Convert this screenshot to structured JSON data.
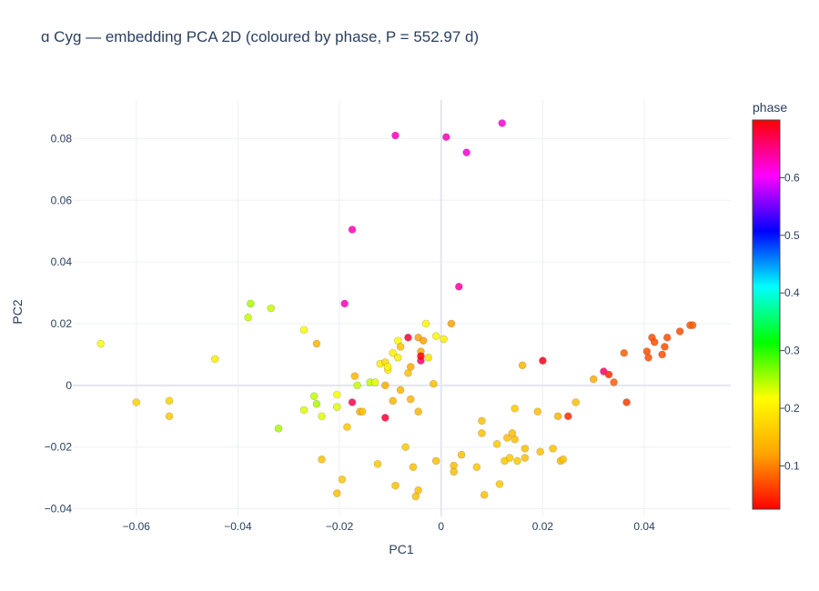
{
  "chart_data": {
    "type": "scatter",
    "title": "ɑ Cyg — embedding PCA 2D (coloured by phase, P = 552.97 d)",
    "xlabel": "PC1",
    "ylabel": "PC2",
    "xlim": [
      -0.0725,
      0.057
    ],
    "ylim": [
      -0.0425,
      0.0925
    ],
    "xticks": [
      -0.06,
      -0.04,
      -0.02,
      0,
      0.02,
      0.04
    ],
    "xtick_labels": [
      "−0.06",
      "−0.04",
      "−0.02",
      "0",
      "0.02",
      "0.04"
    ],
    "yticks": [
      -0.04,
      -0.02,
      0,
      0.02,
      0.04,
      0.06,
      0.08
    ],
    "ytick_labels": [
      "−0.04",
      "−0.02",
      "0",
      "0.02",
      "0.04",
      "0.06",
      "0.08"
    ],
    "grid": true,
    "colorbar": {
      "title": "phase",
      "range": [
        0.025,
        0.7
      ],
      "ticks": [
        0.1,
        0.2,
        0.3,
        0.4,
        0.5,
        0.6
      ],
      "tick_labels": [
        "0.1",
        "0.2",
        "0.3",
        "0.4",
        "0.5",
        "0.6"
      ],
      "colorscale": [
        "#ff0000",
        "#ffa500",
        "#ffff00",
        "#00ff00",
        "#00ffff",
        "#0000ff",
        "#ff00ff",
        "#ff0000"
      ]
    },
    "points": [
      {
        "x": -0.067,
        "y": 0.0135,
        "phase": 0.22
      },
      {
        "x": -0.06,
        "y": -0.0055,
        "phase": 0.17
      },
      {
        "x": -0.0535,
        "y": -0.005,
        "phase": 0.17
      },
      {
        "x": -0.0535,
        "y": -0.01,
        "phase": 0.16
      },
      {
        "x": -0.0445,
        "y": 0.0085,
        "phase": 0.2
      },
      {
        "x": -0.0375,
        "y": 0.0265,
        "phase": 0.25
      },
      {
        "x": -0.038,
        "y": 0.022,
        "phase": 0.24
      },
      {
        "x": -0.0335,
        "y": 0.025,
        "phase": 0.24
      },
      {
        "x": -0.032,
        "y": -0.014,
        "phase": 0.25
      },
      {
        "x": -0.027,
        "y": 0.018,
        "phase": 0.22
      },
      {
        "x": -0.027,
        "y": -0.008,
        "phase": 0.23
      },
      {
        "x": -0.0245,
        "y": 0.0135,
        "phase": 0.14
      },
      {
        "x": -0.025,
        "y": -0.0035,
        "phase": 0.24
      },
      {
        "x": -0.0245,
        "y": -0.006,
        "phase": 0.25
      },
      {
        "x": -0.0235,
        "y": -0.01,
        "phase": 0.23
      },
      {
        "x": -0.0235,
        "y": -0.024,
        "phase": 0.15
      },
      {
        "x": -0.0205,
        "y": -0.003,
        "phase": 0.22
      },
      {
        "x": -0.0205,
        "y": -0.007,
        "phase": 0.23
      },
      {
        "x": -0.0205,
        "y": -0.035,
        "phase": 0.15
      },
      {
        "x": -0.0195,
        "y": -0.0305,
        "phase": 0.16
      },
      {
        "x": -0.019,
        "y": 0.0265,
        "phase": 0.63
      },
      {
        "x": -0.0185,
        "y": -0.0135,
        "phase": 0.16
      },
      {
        "x": -0.0175,
        "y": 0.0505,
        "phase": 0.63
      },
      {
        "x": -0.0175,
        "y": -0.0055,
        "phase": 0.67
      },
      {
        "x": -0.017,
        "y": 0.003,
        "phase": 0.14
      },
      {
        "x": -0.0165,
        "y": 0.0,
        "phase": 0.24
      },
      {
        "x": -0.016,
        "y": -0.0085,
        "phase": 0.14
      },
      {
        "x": -0.0155,
        "y": -0.0085,
        "phase": 0.15
      },
      {
        "x": -0.014,
        "y": 0.001,
        "phase": 0.24
      },
      {
        "x": -0.013,
        "y": 0.001,
        "phase": 0.23
      },
      {
        "x": -0.0125,
        "y": -0.0255,
        "phase": 0.16
      },
      {
        "x": -0.012,
        "y": 0.007,
        "phase": 0.2
      },
      {
        "x": -0.011,
        "y": -0.0105,
        "phase": 0.68
      },
      {
        "x": -0.011,
        "y": 0.0,
        "phase": 0.13
      },
      {
        "x": -0.011,
        "y": 0.0075,
        "phase": 0.18
      },
      {
        "x": -0.0105,
        "y": 0.005,
        "phase": 0.2
      },
      {
        "x": -0.0105,
        "y": 0.006,
        "phase": 0.21
      },
      {
        "x": -0.0095,
        "y": 0.0105,
        "phase": 0.2
      },
      {
        "x": -0.0095,
        "y": -0.005,
        "phase": 0.14
      },
      {
        "x": -0.009,
        "y": 0.081,
        "phase": 0.63
      },
      {
        "x": -0.009,
        "y": -0.0325,
        "phase": 0.15
      },
      {
        "x": -0.0085,
        "y": 0.0145,
        "phase": 0.21
      },
      {
        "x": -0.0085,
        "y": 0.009,
        "phase": 0.2
      },
      {
        "x": -0.008,
        "y": 0.0125,
        "phase": 0.15
      },
      {
        "x": -0.008,
        "y": -0.0015,
        "phase": 0.14
      },
      {
        "x": -0.007,
        "y": -0.02,
        "phase": 0.16
      },
      {
        "x": -0.0065,
        "y": 0.0155,
        "phase": 0.68
      },
      {
        "x": -0.0065,
        "y": 0.004,
        "phase": 0.15
      },
      {
        "x": -0.006,
        "y": -0.0045,
        "phase": 0.14
      },
      {
        "x": -0.006,
        "y": 0.006,
        "phase": 0.13
      },
      {
        "x": -0.0055,
        "y": -0.0265,
        "phase": 0.15
      },
      {
        "x": -0.005,
        "y": -0.036,
        "phase": 0.15
      },
      {
        "x": -0.0045,
        "y": 0.0155,
        "phase": 0.12
      },
      {
        "x": -0.0045,
        "y": -0.034,
        "phase": 0.15
      },
      {
        "x": -0.0045,
        "y": -0.0085,
        "phase": 0.14
      },
      {
        "x": -0.004,
        "y": 0.011,
        "phase": 0.13
      },
      {
        "x": -0.004,
        "y": 0.008,
        "phase": 0.66
      },
      {
        "x": -0.004,
        "y": 0.0095,
        "phase": 0.7
      },
      {
        "x": -0.0035,
        "y": 0.0145,
        "phase": 0.12
      },
      {
        "x": -0.003,
        "y": 0.02,
        "phase": 0.21
      },
      {
        "x": -0.0025,
        "y": 0.009,
        "phase": 0.19
      },
      {
        "x": -0.0015,
        "y": 0.0005,
        "phase": 0.15
      },
      {
        "x": -0.001,
        "y": -0.0245,
        "phase": 0.15
      },
      {
        "x": -0.001,
        "y": 0.016,
        "phase": 0.21
      },
      {
        "x": 0.0005,
        "y": 0.015,
        "phase": 0.2
      },
      {
        "x": 0.001,
        "y": 0.0805,
        "phase": 0.63
      },
      {
        "x": 0.002,
        "y": 0.02,
        "phase": 0.12
      },
      {
        "x": 0.0025,
        "y": -0.026,
        "phase": 0.15
      },
      {
        "x": 0.0025,
        "y": -0.028,
        "phase": 0.15
      },
      {
        "x": 0.0035,
        "y": 0.032,
        "phase": 0.64
      },
      {
        "x": 0.004,
        "y": -0.0225,
        "phase": 0.15
      },
      {
        "x": 0.005,
        "y": 0.0755,
        "phase": 0.62
      },
      {
        "x": 0.007,
        "y": -0.0265,
        "phase": 0.16
      },
      {
        "x": 0.008,
        "y": -0.0115,
        "phase": 0.15
      },
      {
        "x": 0.008,
        "y": -0.0155,
        "phase": 0.15
      },
      {
        "x": 0.0085,
        "y": -0.0355,
        "phase": 0.15
      },
      {
        "x": 0.011,
        "y": -0.019,
        "phase": 0.16
      },
      {
        "x": 0.0115,
        "y": -0.032,
        "phase": 0.16
      },
      {
        "x": 0.012,
        "y": 0.085,
        "phase": 0.62
      },
      {
        "x": 0.0125,
        "y": -0.0245,
        "phase": 0.16
      },
      {
        "x": 0.013,
        "y": -0.017,
        "phase": 0.15
      },
      {
        "x": 0.0135,
        "y": -0.0235,
        "phase": 0.16
      },
      {
        "x": 0.014,
        "y": -0.0155,
        "phase": 0.15
      },
      {
        "x": 0.0145,
        "y": -0.0175,
        "phase": 0.15
      },
      {
        "x": 0.0145,
        "y": -0.0075,
        "phase": 0.16
      },
      {
        "x": 0.015,
        "y": -0.0245,
        "phase": 0.16
      },
      {
        "x": 0.016,
        "y": 0.0065,
        "phase": 0.14
      },
      {
        "x": 0.0165,
        "y": -0.0205,
        "phase": 0.15
      },
      {
        "x": 0.0165,
        "y": -0.0235,
        "phase": 0.15
      },
      {
        "x": 0.019,
        "y": -0.0085,
        "phase": 0.15
      },
      {
        "x": 0.0195,
        "y": -0.0215,
        "phase": 0.15
      },
      {
        "x": 0.02,
        "y": 0.008,
        "phase": 0.69
      },
      {
        "x": 0.022,
        "y": -0.0205,
        "phase": 0.15
      },
      {
        "x": 0.023,
        "y": -0.01,
        "phase": 0.14
      },
      {
        "x": 0.0235,
        "y": -0.0245,
        "phase": 0.15
      },
      {
        "x": 0.024,
        "y": -0.024,
        "phase": 0.15
      },
      {
        "x": 0.025,
        "y": -0.01,
        "phase": 0.05
      },
      {
        "x": 0.0265,
        "y": -0.0055,
        "phase": 0.15
      },
      {
        "x": 0.03,
        "y": 0.002,
        "phase": 0.13
      },
      {
        "x": 0.032,
        "y": 0.0045,
        "phase": 0.66
      },
      {
        "x": 0.033,
        "y": 0.0035,
        "phase": 0.05
      },
      {
        "x": 0.034,
        "y": 0.001,
        "phase": 0.08
      },
      {
        "x": 0.036,
        "y": 0.0105,
        "phase": 0.08
      },
      {
        "x": 0.0365,
        "y": -0.0055,
        "phase": 0.06
      },
      {
        "x": 0.0405,
        "y": 0.011,
        "phase": 0.07
      },
      {
        "x": 0.0408,
        "y": 0.009,
        "phase": 0.07
      },
      {
        "x": 0.0415,
        "y": 0.0155,
        "phase": 0.07
      },
      {
        "x": 0.042,
        "y": 0.014,
        "phase": 0.07
      },
      {
        "x": 0.0435,
        "y": 0.01,
        "phase": 0.07
      },
      {
        "x": 0.044,
        "y": 0.0125,
        "phase": 0.07
      },
      {
        "x": 0.0445,
        "y": 0.0155,
        "phase": 0.07
      },
      {
        "x": 0.047,
        "y": 0.0175,
        "phase": 0.07
      },
      {
        "x": 0.049,
        "y": 0.0195,
        "phase": 0.08
      },
      {
        "x": 0.0495,
        "y": 0.0195,
        "phase": 0.08
      }
    ]
  }
}
